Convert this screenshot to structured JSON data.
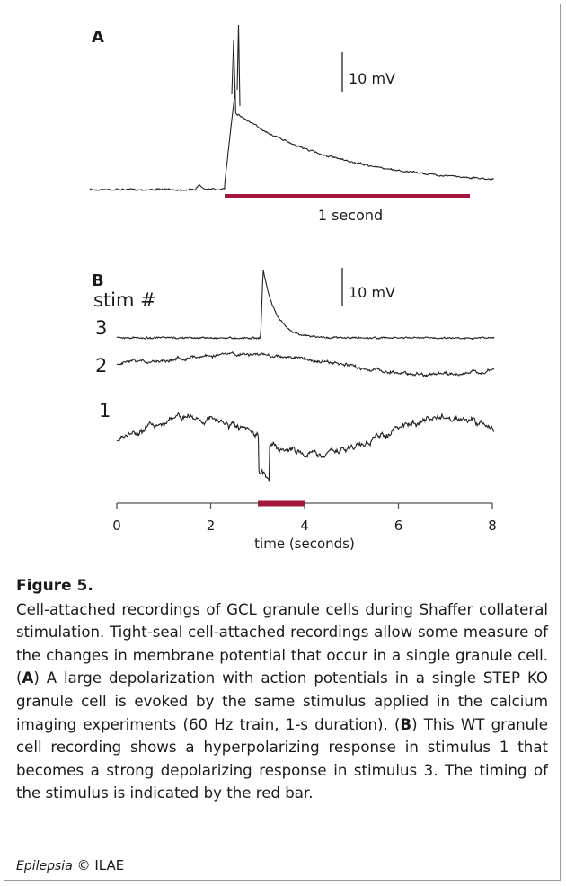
{
  "figure": {
    "panel_a": {
      "label": "A",
      "scale": "10 mV",
      "duration": "1 second"
    },
    "panel_b": {
      "label": "B",
      "stim_heading": "stim #",
      "scale": "10 mV",
      "trace_labels": [
        "3",
        "2",
        "1"
      ],
      "axis": {
        "ticks": [
          0,
          2,
          4,
          6,
          8
        ],
        "label": "time (seconds)"
      }
    }
  },
  "caption": {
    "label": "Figure 5.",
    "text": [
      "Cell-attached recordings of GCL granule cells during Shaffer collateral stimulation. Tight-seal cell-attached recordings allow some measure of the changes in membrane potential that occur in a single granule cell. (",
      "A",
      ") A large depolarization with action potentials in a single STEP KO granule cell is evoked by the same stimulus applied in the calcium imaging experiments (60 Hz train, 1-s duration). (",
      "B",
      ") This WT granule cell recording shows a hyperpolarizing response in stimulus 1 that becomes a strong depolarizing response in stimulus 3. The timing of the stimulus is indicated by the red bar."
    ]
  },
  "footer": {
    "journal": "Epilepsia",
    "symbol": "©",
    "publisher": "ILAE"
  }
}
